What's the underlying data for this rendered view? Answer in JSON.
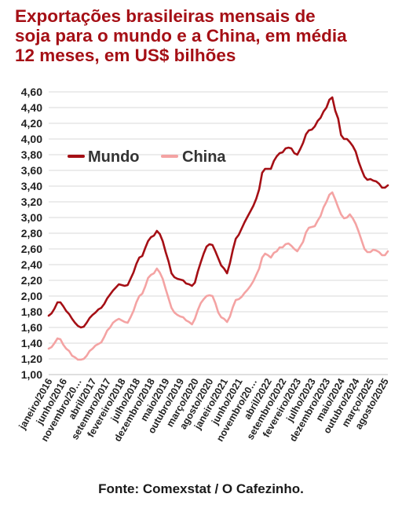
{
  "title_lines": [
    "Exportações brasileiras mensais de",
    "soja para o mundo e a China, em média",
    "12 meses, em US$ bilhões"
  ],
  "source": "Fonte: Comexstat / O Cafezinho.",
  "colors": {
    "mundo": "#a50f15",
    "china": "#f4a3a3",
    "title": "#a50f15",
    "grid": "#d9d9d9"
  },
  "chart_data": {
    "type": "line",
    "title": "Exportações brasileiras mensais de soja para o mundo e a China, em média 12 meses, em US$ bilhões",
    "ylim": [
      1.0,
      4.6
    ],
    "y_ticks": [
      "1,00",
      "1,20",
      "1,40",
      "1,60",
      "1,80",
      "2,00",
      "2,20",
      "2,40",
      "2,60",
      "2,80",
      "3,00",
      "3,20",
      "3,40",
      "3,60",
      "3,80",
      "4,00",
      "4,20",
      "4,40",
      "4,60"
    ],
    "x_tick_labels": [
      "janeiro/2016",
      "junho/2016",
      "novembro/20…",
      "abril/2017",
      "setembro/2017",
      "fevereiro/2018",
      "julho/2018",
      "dezembro/2018",
      "maio/2019",
      "outubro/2019",
      "março/2020",
      "agosto/2020",
      "janeiro/2021",
      "junho/2021",
      "novembro/20…",
      "abril/2022",
      "setembro/2022",
      "fevereiro/2023",
      "julho/2023",
      "dezembro/2023",
      "maio/2024",
      "outubro/2024",
      "março/2025",
      "agosto/2025"
    ],
    "x_tick_step_months": 5,
    "legend_position": "upper-left",
    "grid": true,
    "series": [
      {
        "name": "Mundo",
        "values": [
          1.75,
          1.78,
          1.84,
          1.92,
          1.92,
          1.87,
          1.81,
          1.77,
          1.71,
          1.66,
          1.62,
          1.6,
          1.61,
          1.66,
          1.72,
          1.76,
          1.79,
          1.83,
          1.85,
          1.9,
          1.97,
          2.02,
          2.07,
          2.11,
          2.15,
          2.14,
          2.13,
          2.14,
          2.22,
          2.3,
          2.41,
          2.49,
          2.51,
          2.61,
          2.7,
          2.75,
          2.77,
          2.83,
          2.79,
          2.7,
          2.56,
          2.44,
          2.29,
          2.24,
          2.22,
          2.21,
          2.2,
          2.16,
          2.15,
          2.13,
          2.17,
          2.31,
          2.43,
          2.54,
          2.63,
          2.66,
          2.65,
          2.57,
          2.48,
          2.39,
          2.35,
          2.29,
          2.42,
          2.59,
          2.73,
          2.78,
          2.86,
          2.94,
          3.01,
          3.08,
          3.15,
          3.24,
          3.36,
          3.57,
          3.62,
          3.62,
          3.62,
          3.72,
          3.78,
          3.82,
          3.83,
          3.88,
          3.89,
          3.88,
          3.82,
          3.8,
          3.87,
          3.95,
          4.06,
          4.11,
          4.12,
          4.16,
          4.23,
          4.27,
          4.35,
          4.4,
          4.5,
          4.53,
          4.36,
          4.26,
          4.05,
          4.0,
          4.0,
          3.96,
          3.91,
          3.84,
          3.71,
          3.61,
          3.52,
          3.48,
          3.49,
          3.47,
          3.46,
          3.43,
          3.38,
          3.38,
          3.41
        ]
      },
      {
        "name": "China",
        "values": [
          1.33,
          1.35,
          1.4,
          1.46,
          1.45,
          1.38,
          1.33,
          1.3,
          1.24,
          1.22,
          1.19,
          1.19,
          1.2,
          1.24,
          1.3,
          1.33,
          1.37,
          1.39,
          1.41,
          1.48,
          1.56,
          1.6,
          1.66,
          1.69,
          1.71,
          1.69,
          1.67,
          1.66,
          1.73,
          1.81,
          1.92,
          2.0,
          2.03,
          2.12,
          2.23,
          2.27,
          2.29,
          2.35,
          2.3,
          2.22,
          2.09,
          1.97,
          1.85,
          1.79,
          1.76,
          1.74,
          1.73,
          1.69,
          1.67,
          1.64,
          1.71,
          1.82,
          1.91,
          1.96,
          2.0,
          2.01,
          2.0,
          1.91,
          1.79,
          1.73,
          1.71,
          1.67,
          1.74,
          1.86,
          1.95,
          1.96,
          1.99,
          2.04,
          2.08,
          2.13,
          2.19,
          2.27,
          2.35,
          2.49,
          2.54,
          2.52,
          2.49,
          2.55,
          2.57,
          2.62,
          2.62,
          2.66,
          2.67,
          2.64,
          2.6,
          2.57,
          2.63,
          2.69,
          2.81,
          2.87,
          2.88,
          2.89,
          2.96,
          3.02,
          3.13,
          3.2,
          3.29,
          3.32,
          3.23,
          3.13,
          3.04,
          2.99,
          3.0,
          3.04,
          2.99,
          2.92,
          2.82,
          2.71,
          2.6,
          2.56,
          2.56,
          2.59,
          2.58,
          2.56,
          2.52,
          2.52,
          2.57
        ]
      }
    ]
  }
}
